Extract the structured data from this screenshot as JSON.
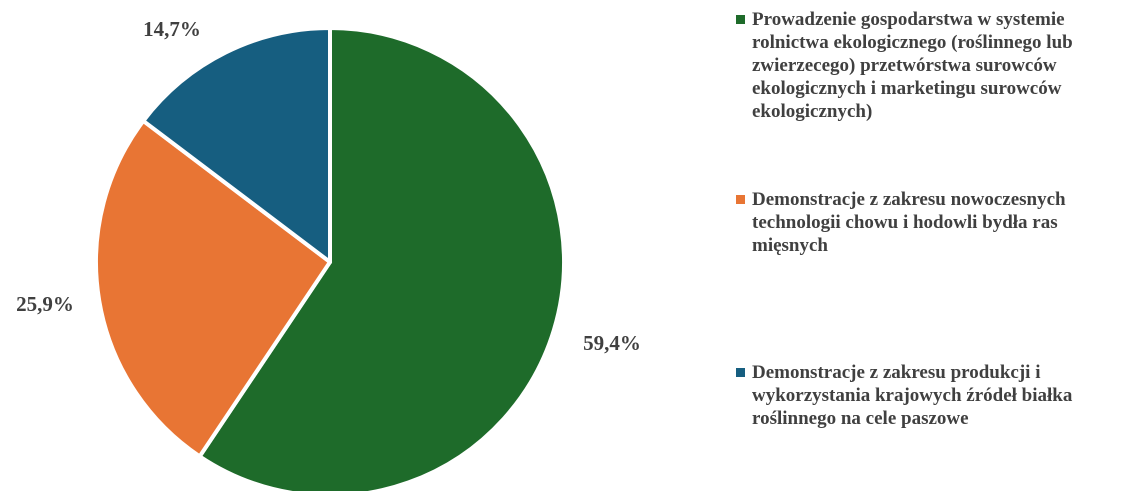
{
  "chart_data": {
    "type": "pie",
    "start_angle_deg": 0,
    "direction": "clockwise",
    "slices": [
      {
        "name": "Prowadzenie gospodarstwa w systemie rolnictwa ekologicznego (roślinnego lub zwierzecego) przetwórstwa surowców ekologicznych i marketingu surowców ekologicznych)",
        "value": 59.4,
        "label": "59,4%",
        "color": "#1e6b2a"
      },
      {
        "name": "Demonstracje z zakresu nowoczesnych technologii chowu i hodowli bydła ras mięsnych",
        "value": 25.9,
        "label": "25,9%",
        "color": "#e87534"
      },
      {
        "name": "Demonstracje z zakresu produkcji i wykorzystania krajowych źródeł białka roślinnego na cele paszowe",
        "value": 14.7,
        "label": "14,7%",
        "color": "#165e80"
      }
    ],
    "legend_position": "right"
  }
}
